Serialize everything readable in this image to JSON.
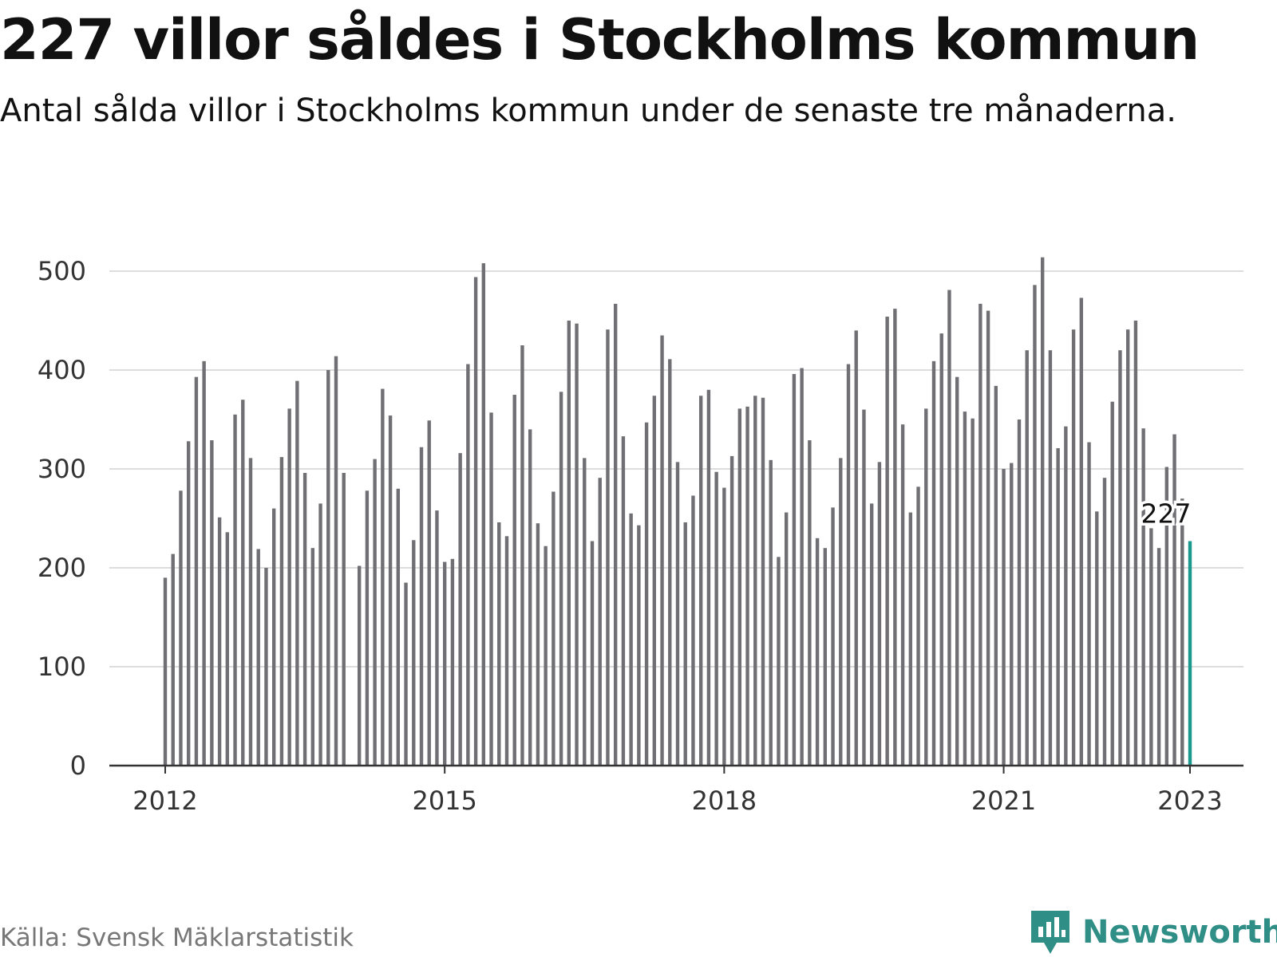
{
  "title": "227 villor såldes i Stockholms kommun",
  "subtitle": "Antal sålda villor i Stockholms kommun under de senaste tre månaderna.",
  "source": "Källa: Svensk Mäklarstatistik",
  "brand": {
    "name": "Newsworthy",
    "color": "#2f8e86",
    "icon": "newsworthy-logo-icon"
  },
  "colors": {
    "bar": "#707074",
    "highlight": "#1a9a8e",
    "grid": "#dddddd",
    "axis": "#333333"
  },
  "chart_data": {
    "type": "bar",
    "title": "227 villor såldes i Stockholms kommun",
    "xlabel": "",
    "ylabel": "",
    "grid": true,
    "legend": "none",
    "ylim": [
      0,
      500
    ],
    "yticks": [
      0,
      100,
      200,
      300,
      400,
      500
    ],
    "xticks": [
      "2012",
      "2015",
      "2018",
      "2021",
      "2023"
    ],
    "start": "2012-01",
    "end": "2023-01",
    "highlight_label": "227",
    "categories": [
      "2012-01",
      "2012-02",
      "2012-03",
      "2012-04",
      "2012-05",
      "2012-06",
      "2012-07",
      "2012-08",
      "2012-09",
      "2012-10",
      "2012-11",
      "2012-12",
      "2013-01",
      "2013-02",
      "2013-03",
      "2013-04",
      "2013-05",
      "2013-06",
      "2013-07",
      "2013-08",
      "2013-09",
      "2013-10",
      "2013-11",
      "2013-12",
      "2014-01",
      "2014-02",
      "2014-03",
      "2014-04",
      "2014-05",
      "2014-06",
      "2014-07",
      "2014-08",
      "2014-09",
      "2014-10",
      "2014-11",
      "2014-12",
      "2015-01",
      "2015-02",
      "2015-03",
      "2015-04",
      "2015-05",
      "2015-06",
      "2015-07",
      "2015-08",
      "2015-09",
      "2015-10",
      "2015-11",
      "2015-12",
      "2016-01",
      "2016-02",
      "2016-03",
      "2016-04",
      "2016-05",
      "2016-06",
      "2016-07",
      "2016-08",
      "2016-09",
      "2016-10",
      "2016-11",
      "2016-12",
      "2017-01",
      "2017-02",
      "2017-03",
      "2017-04",
      "2017-05",
      "2017-06",
      "2017-07",
      "2017-08",
      "2017-09",
      "2017-10",
      "2017-11",
      "2017-12",
      "2018-01",
      "2018-02",
      "2018-03",
      "2018-04",
      "2018-05",
      "2018-06",
      "2018-07",
      "2018-08",
      "2018-09",
      "2018-10",
      "2018-11",
      "2018-12",
      "2019-01",
      "2019-02",
      "2019-03",
      "2019-04",
      "2019-05",
      "2019-06",
      "2019-07",
      "2019-08",
      "2019-09",
      "2019-10",
      "2019-11",
      "2019-12",
      "2020-01",
      "2020-02",
      "2020-03",
      "2020-04",
      "2020-05",
      "2020-06",
      "2020-07",
      "2020-08",
      "2020-09",
      "2020-10",
      "2020-11",
      "2020-12",
      "2021-01",
      "2021-02",
      "2021-03",
      "2021-04",
      "2021-05",
      "2021-06",
      "2021-07",
      "2021-08",
      "2021-09",
      "2021-10",
      "2021-11",
      "2021-12",
      "2022-01",
      "2022-02",
      "2022-03",
      "2022-04",
      "2022-05",
      "2022-06",
      "2022-07",
      "2022-08",
      "2022-09",
      "2022-10",
      "2022-11",
      "2022-12",
      "2023-01"
    ],
    "values": [
      190,
      214,
      278,
      328,
      393,
      409,
      329,
      251,
      236,
      355,
      370,
      311,
      219,
      200,
      260,
      312,
      361,
      389,
      296,
      220,
      265,
      400,
      414,
      296,
      null,
      202,
      278,
      310,
      381,
      354,
      280,
      185,
      228,
      322,
      349,
      258,
      206,
      209,
      316,
      406,
      494,
      508,
      357,
      246,
      232,
      375,
      425,
      340,
      245,
      222,
      277,
      378,
      450,
      447,
      311,
      227,
      291,
      441,
      467,
      333,
      255,
      243,
      347,
      374,
      435,
      411,
      307,
      246,
      273,
      374,
      380,
      297,
      281,
      313,
      361,
      363,
      374,
      372,
      309,
      211,
      256,
      396,
      402,
      329,
      230,
      220,
      261,
      311,
      406,
      440,
      360,
      265,
      307,
      454,
      462,
      345,
      256,
      282,
      361,
      409,
      437,
      481,
      393,
      358,
      351,
      467,
      460,
      384,
      300,
      306,
      350,
      420,
      486,
      514,
      420,
      321,
      343,
      441,
      473,
      327,
      257,
      291,
      368,
      420,
      441,
      450,
      341,
      240,
      220,
      302,
      335,
      270,
      227
    ]
  }
}
